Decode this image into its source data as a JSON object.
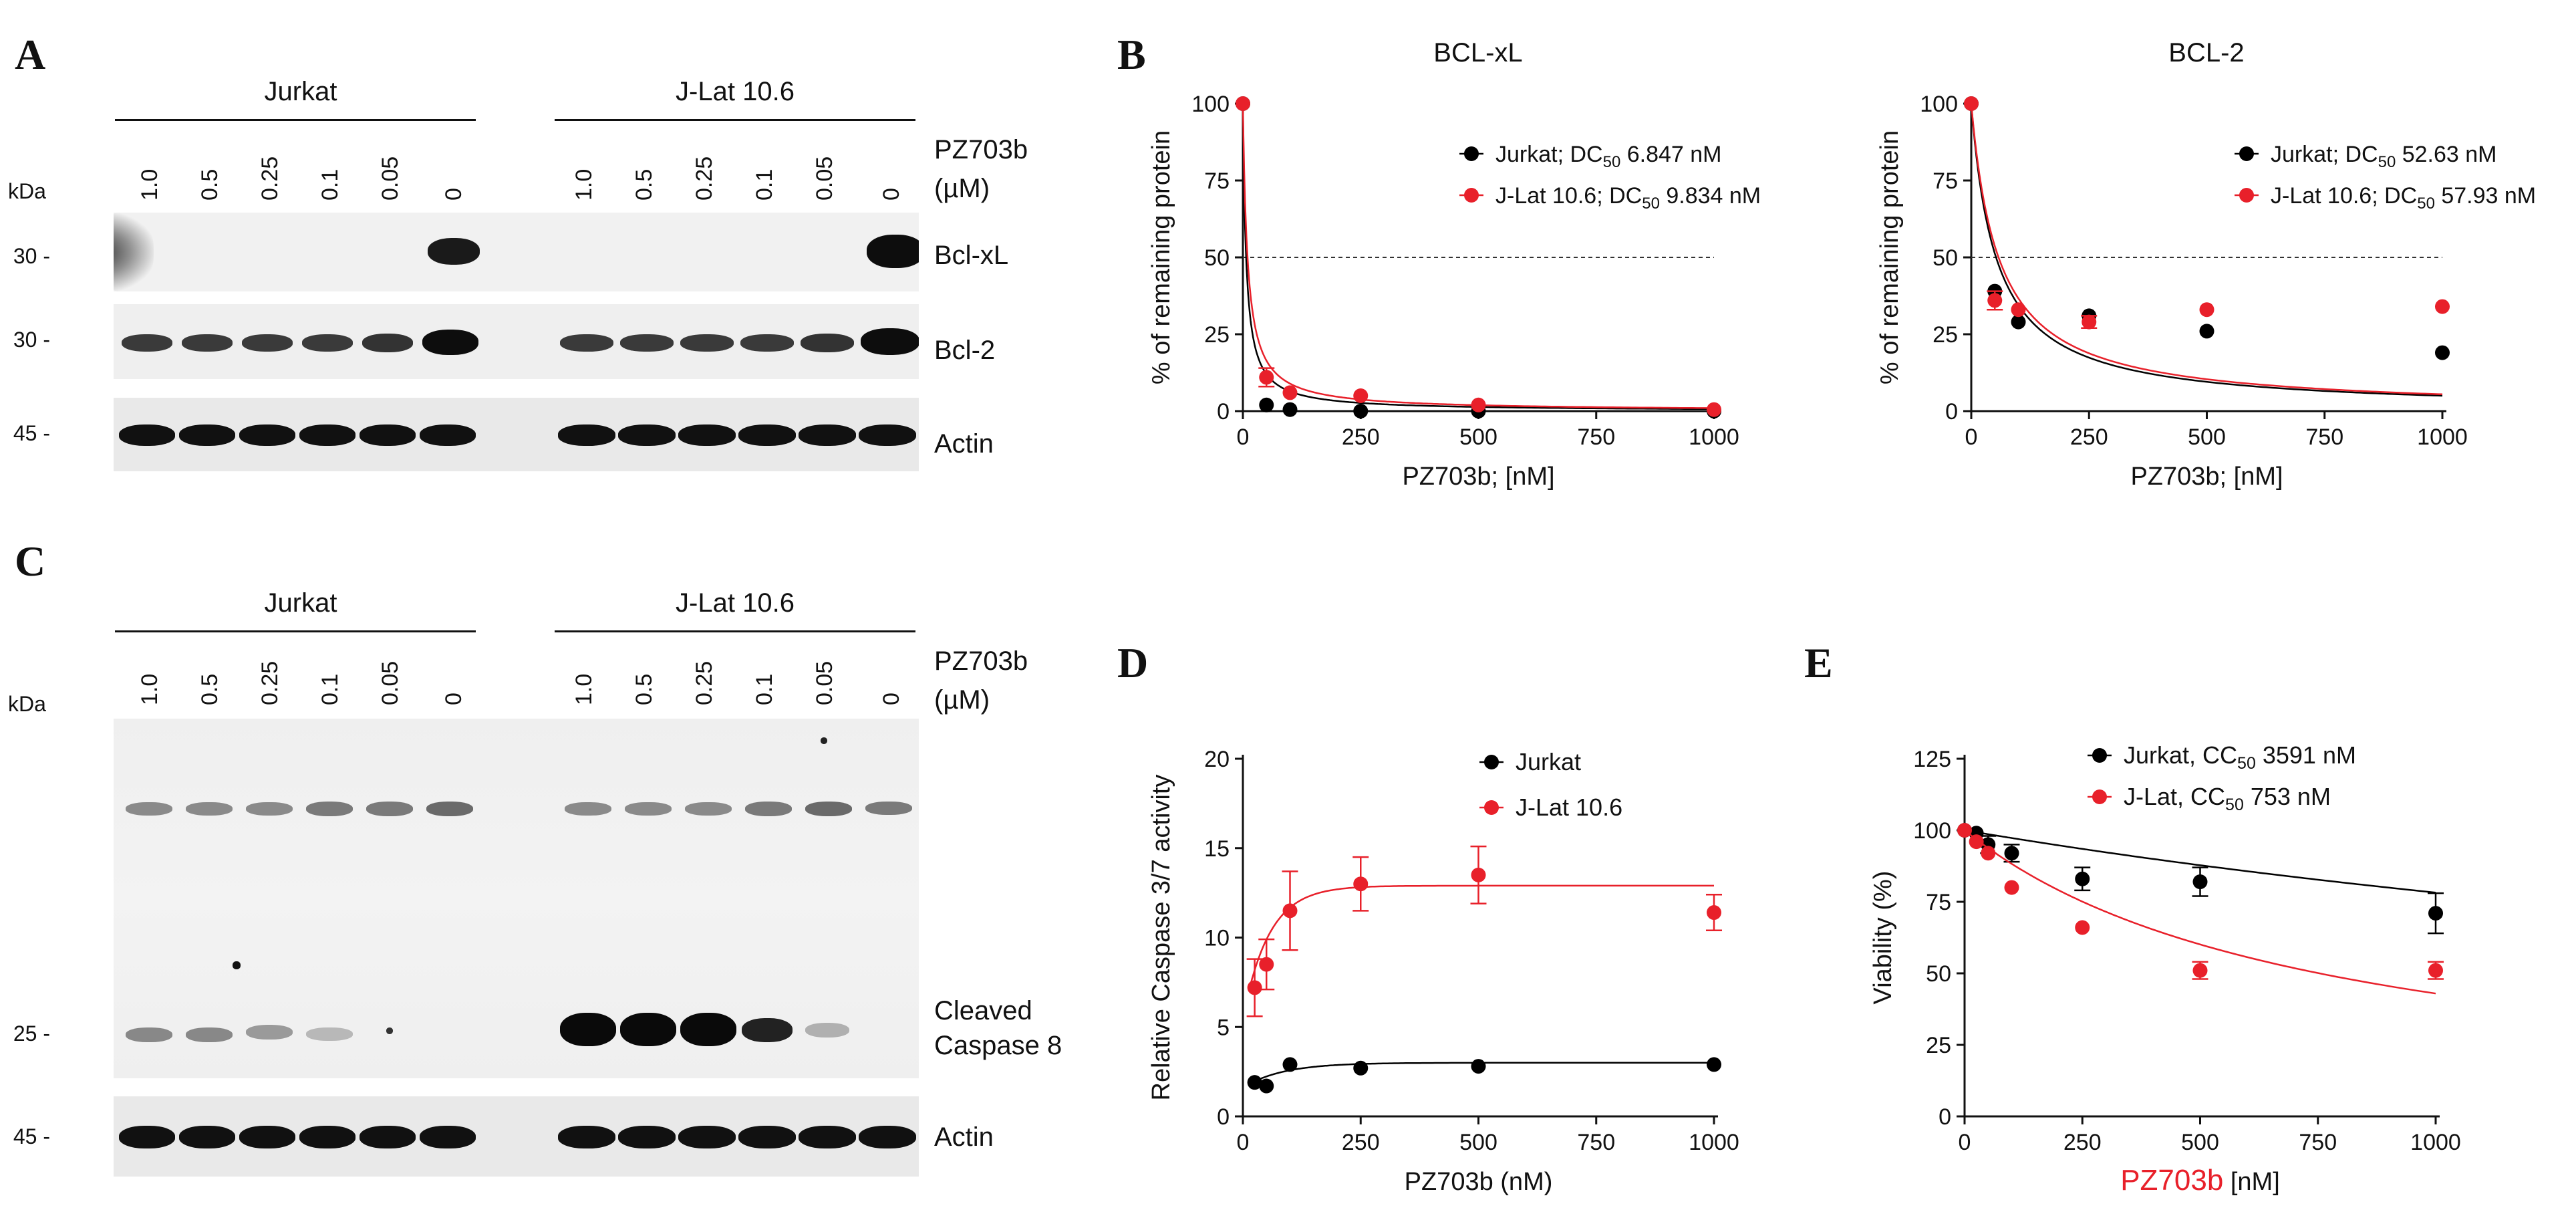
{
  "panel_letters": {
    "a": "A",
    "b": "B",
    "c": "C",
    "d": "D",
    "e": "E"
  },
  "blot_a": {
    "groups": [
      "Jurkat",
      "J-Lat 10.6"
    ],
    "doses": [
      "1.0",
      "0.5",
      "0.25",
      "0.1",
      "0.05",
      "0"
    ],
    "treatment_label": "PZ703b",
    "unit_label": "(µM)",
    "kda": "kDa",
    "rows": [
      {
        "mw": "30 -",
        "label": "Bcl-xL"
      },
      {
        "mw": "30 -",
        "label": "Bcl-2"
      },
      {
        "mw": "45 -",
        "label": "Actin"
      }
    ]
  },
  "blot_c": {
    "groups": [
      "Jurkat",
      "J-Lat 10.6"
    ],
    "doses": [
      "1.0",
      "0.5",
      "0.25",
      "0.1",
      "0.05",
      "0"
    ],
    "treatment_label": "PZ703b",
    "unit_label": "(µM)",
    "kda": "kDa",
    "rows": [
      {
        "mw": "25 -",
        "label_line1": "Cleaved",
        "label_line2": "Caspase 8"
      },
      {
        "mw": "45 -",
        "label": "Actin"
      }
    ]
  },
  "chart_data": [
    {
      "id": "bclxl",
      "type": "scatter",
      "title": "BCL-xL",
      "xlabel": "PZ703b; [nM]",
      "ylabel": "% of remaining protein",
      "xlim": [
        0,
        1000
      ],
      "ylim": [
        0,
        100
      ],
      "xticks": [
        0,
        250,
        500,
        750,
        1000
      ],
      "yticks": [
        0,
        25,
        50,
        75,
        100
      ],
      "reference_line": 50,
      "legend_position": "top-right",
      "series": [
        {
          "name": "Jurkat; DC",
          "sub": "50",
          "tail": " 6.847 nM",
          "color": "#000000",
          "x": [
            0,
            50,
            100,
            250,
            500,
            1000
          ],
          "y": [
            100,
            2,
            0.5,
            0,
            0,
            0
          ],
          "err": [
            0,
            0,
            0,
            0,
            0,
            0
          ],
          "dc50": 6.847
        },
        {
          "name": "J-Lat 10.6; DC",
          "sub": "50",
          "tail": " 9.834 nM",
          "color": "#e8202a",
          "x": [
            0,
            50,
            100,
            250,
            500,
            1000
          ],
          "y": [
            100,
            11,
            6,
            5,
            2,
            0.5
          ],
          "err": [
            0,
            3,
            0,
            0,
            0,
            0
          ],
          "dc50": 9.834
        }
      ]
    },
    {
      "id": "bcl2",
      "type": "scatter",
      "title": "BCL-2",
      "xlabel": "PZ703b; [nM]",
      "ylabel": "% of remaining protein",
      "xlim": [
        0,
        1000
      ],
      "ylim": [
        0,
        100
      ],
      "xticks": [
        0,
        250,
        500,
        750,
        1000
      ],
      "yticks": [
        0,
        25,
        50,
        75,
        100
      ],
      "reference_line": 50,
      "legend_position": "top-right",
      "series": [
        {
          "name": "Jurkat; DC",
          "sub": "50",
          "tail": " 52.63 nM",
          "color": "#000000",
          "x": [
            0,
            50,
            100,
            250,
            500,
            1000
          ],
          "y": [
            100,
            39,
            29,
            31,
            26,
            19
          ],
          "err": [
            0,
            0,
            0,
            0,
            0,
            0
          ],
          "dc50": 52.63
        },
        {
          "name": "J-Lat 10.6; DC",
          "sub": "50",
          "tail": " 57.93 nM",
          "color": "#e8202a",
          "x": [
            0,
            50,
            100,
            250,
            500,
            1000
          ],
          "y": [
            100,
            36,
            33,
            29,
            33,
            34
          ],
          "err": [
            0,
            3,
            0,
            2,
            0,
            0
          ],
          "dc50": 57.93
        }
      ]
    },
    {
      "id": "caspase",
      "type": "scatter",
      "title": "",
      "xlabel": "PZ703b (nM)",
      "ylabel": "Relative Caspase 3/7 activity",
      "xlim": [
        0,
        1000
      ],
      "ylim": [
        0,
        20
      ],
      "xticks": [
        0,
        250,
        500,
        750,
        1000
      ],
      "yticks": [
        0,
        5,
        10,
        15,
        20
      ],
      "legend_position": "top-right",
      "series": [
        {
          "name": "Jurkat",
          "color": "#000000",
          "x": [
            25,
            50,
            100,
            250,
            500,
            1000
          ],
          "y": [
            1.9,
            1.7,
            2.9,
            2.7,
            2.8,
            2.9
          ],
          "err": [
            0,
            0,
            0,
            0,
            0,
            0
          ],
          "fit": {
            "base": 1.6,
            "top": 3.0,
            "k": 0.012
          }
        },
        {
          "name": "J-Lat 10.6",
          "color": "#e8202a",
          "x": [
            25,
            50,
            100,
            250,
            500,
            1000
          ],
          "y": [
            7.2,
            8.5,
            11.5,
            13.0,
            13.5,
            11.4
          ],
          "err": [
            1.6,
            1.4,
            2.2,
            1.5,
            1.6,
            1.0
          ],
          "fit": {
            "base": 5.5,
            "top": 12.9,
            "k": 0.018
          }
        }
      ]
    },
    {
      "id": "viability",
      "type": "scatter",
      "title": "",
      "xlabel": "PZ703b",
      "xlabel_tail": " [nM]",
      "ylabel": "Viability (%)",
      "xlim": [
        0,
        1000
      ],
      "ylim": [
        0,
        125
      ],
      "xticks": [
        0,
        250,
        500,
        750,
        1000
      ],
      "yticks": [
        0,
        25,
        50,
        75,
        100,
        125
      ],
      "legend_position": "top-right",
      "series": [
        {
          "name": "Jurkat, CC",
          "sub": "50",
          "tail": " 3591 nM",
          "color": "#000000",
          "x": [
            0,
            25,
            50,
            100,
            250,
            500,
            1000
          ],
          "y": [
            100,
            99,
            95,
            92,
            83,
            82,
            71
          ],
          "err": [
            0,
            0,
            3,
            3,
            4,
            5,
            7
          ],
          "cc50": 3591
        },
        {
          "name": "J-Lat, CC",
          "sub": "50",
          "tail": " 753 nM",
          "color": "#e8202a",
          "x": [
            0,
            25,
            50,
            100,
            250,
            500,
            1000
          ],
          "y": [
            100,
            96,
            92,
            80,
            66,
            51,
            51
          ],
          "err": [
            0,
            0,
            0,
            0,
            0,
            3,
            3
          ],
          "cc50": 753
        }
      ]
    }
  ]
}
